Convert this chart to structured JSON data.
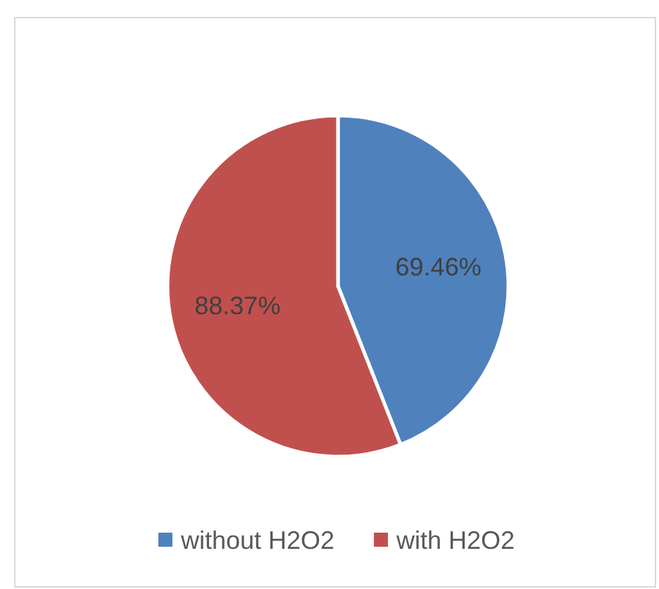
{
  "chart_data": {
    "type": "pie",
    "categories": [
      "without H2O2",
      "with H2O2"
    ],
    "values": [
      69.46,
      88.37
    ],
    "colors": [
      "#4f81bd",
      "#c0504d"
    ],
    "value_labels": [
      "69.46%",
      "88.37%"
    ],
    "legend": "bottom"
  }
}
